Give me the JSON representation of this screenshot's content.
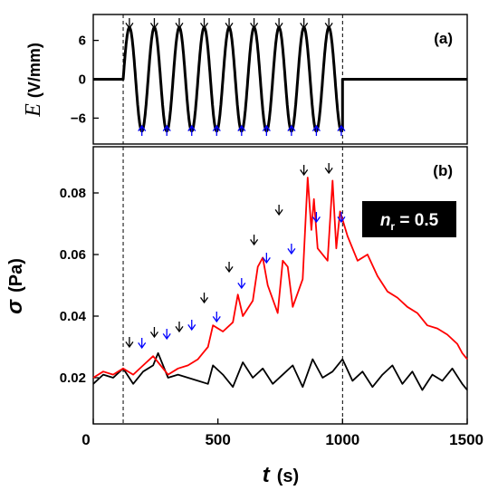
{
  "chart_data": [
    {
      "panel": "a",
      "type": "line",
      "panel_tag": "(a)",
      "ylabel": "E",
      "yunit": "(V/mm)",
      "xlim": [
        0,
        1500
      ],
      "ylim": [
        -10,
        10
      ],
      "yticks": [
        6,
        0,
        -6
      ],
      "ytick_labels": [
        "6",
        "0",
        "−6"
      ],
      "vlines": [
        120,
        1000
      ],
      "series": [
        {
          "color": "#000000",
          "segments": [
            {
              "kind": "flat",
              "x": [
                0,
                120
              ],
              "y": 0
            },
            {
              "kind": "sine",
              "x": [
                120,
                1000
              ],
              "amplitude": 8,
              "period": 100,
              "phase": "rise-from-zero"
            },
            {
              "kind": "flat",
              "x": [
                1000,
                1500
              ],
              "y": 0
            }
          ]
        }
      ],
      "peak_markers": {
        "direction": "down",
        "color": "#000000",
        "x": [
          145,
          245,
          345,
          445,
          545,
          645,
          745,
          845,
          945
        ]
      },
      "trough_markers": {
        "direction": "up",
        "color": "#0000ff",
        "x": [
          195,
          295,
          395,
          495,
          595,
          695,
          795,
          895,
          995
        ]
      }
    },
    {
      "panel": "b",
      "type": "line",
      "panel_tag": "(b)",
      "annotation": {
        "symbol": "n",
        "subscript": "r",
        "text": " = 0.5"
      },
      "xlabel": "t",
      "xunit": "(s)",
      "ylabel": "σ",
      "yunit": "(Pa)",
      "xlim": [
        0,
        1500
      ],
      "ylim": [
        0.005,
        0.095
      ],
      "xticks": [
        0,
        500,
        1000,
        1500
      ],
      "xtick_labels": [
        "0",
        "500",
        "1000",
        "1500"
      ],
      "yticks": [
        0.02,
        0.04,
        0.06,
        0.08
      ],
      "ytick_labels": [
        "0.02",
        "0.04",
        "0.06",
        "0.08"
      ],
      "vlines": [
        120,
        1000
      ],
      "series": [
        {
          "color": "#000000",
          "x": [
            0,
            40,
            80,
            120,
            160,
            200,
            240,
            260,
            300,
            340,
            380,
            420,
            460,
            480,
            520,
            560,
            600,
            640,
            680,
            720,
            760,
            800,
            840,
            880,
            920,
            960,
            1000,
            1040,
            1080,
            1120,
            1160,
            1200,
            1240,
            1280,
            1320,
            1360,
            1400,
            1440,
            1480,
            1500
          ],
          "y": [
            0.018,
            0.021,
            0.02,
            0.023,
            0.018,
            0.022,
            0.024,
            0.028,
            0.02,
            0.021,
            0.02,
            0.019,
            0.018,
            0.024,
            0.021,
            0.017,
            0.025,
            0.02,
            0.023,
            0.018,
            0.021,
            0.024,
            0.017,
            0.026,
            0.02,
            0.022,
            0.026,
            0.019,
            0.022,
            0.017,
            0.021,
            0.024,
            0.018,
            0.022,
            0.016,
            0.021,
            0.019,
            0.023,
            0.018,
            0.016
          ]
        },
        {
          "color": "#ff0000",
          "x": [
            0,
            40,
            80,
            120,
            160,
            200,
            240,
            260,
            300,
            340,
            380,
            420,
            440,
            460,
            480,
            520,
            560,
            580,
            600,
            640,
            660,
            680,
            700,
            740,
            760,
            780,
            800,
            840,
            860,
            875,
            885,
            900,
            940,
            960,
            975,
            990,
            1020,
            1060,
            1100,
            1140,
            1180,
            1220,
            1260,
            1300,
            1340,
            1380,
            1420,
            1460,
            1480,
            1500
          ],
          "y": [
            0.02,
            0.022,
            0.021,
            0.023,
            0.021,
            0.024,
            0.027,
            0.025,
            0.021,
            0.023,
            0.024,
            0.026,
            0.028,
            0.03,
            0.037,
            0.035,
            0.038,
            0.047,
            0.04,
            0.045,
            0.056,
            0.059,
            0.05,
            0.041,
            0.058,
            0.056,
            0.043,
            0.052,
            0.085,
            0.068,
            0.078,
            0.062,
            0.058,
            0.084,
            0.062,
            0.074,
            0.066,
            0.058,
            0.06,
            0.053,
            0.048,
            0.046,
            0.043,
            0.041,
            0.037,
            0.036,
            0.034,
            0.031,
            0.028,
            0.026
          ]
        }
      ],
      "peak_markers": {
        "direction": "down",
        "color": "#000000",
        "x": [
          145,
          245,
          345,
          445,
          545,
          645,
          745,
          845,
          945
        ]
      },
      "trough_markers": {
        "direction": "down",
        "color": "#0000ff",
        "x": [
          195,
          295,
          395,
          495,
          595,
          695,
          795,
          895,
          995
        ]
      }
    }
  ]
}
